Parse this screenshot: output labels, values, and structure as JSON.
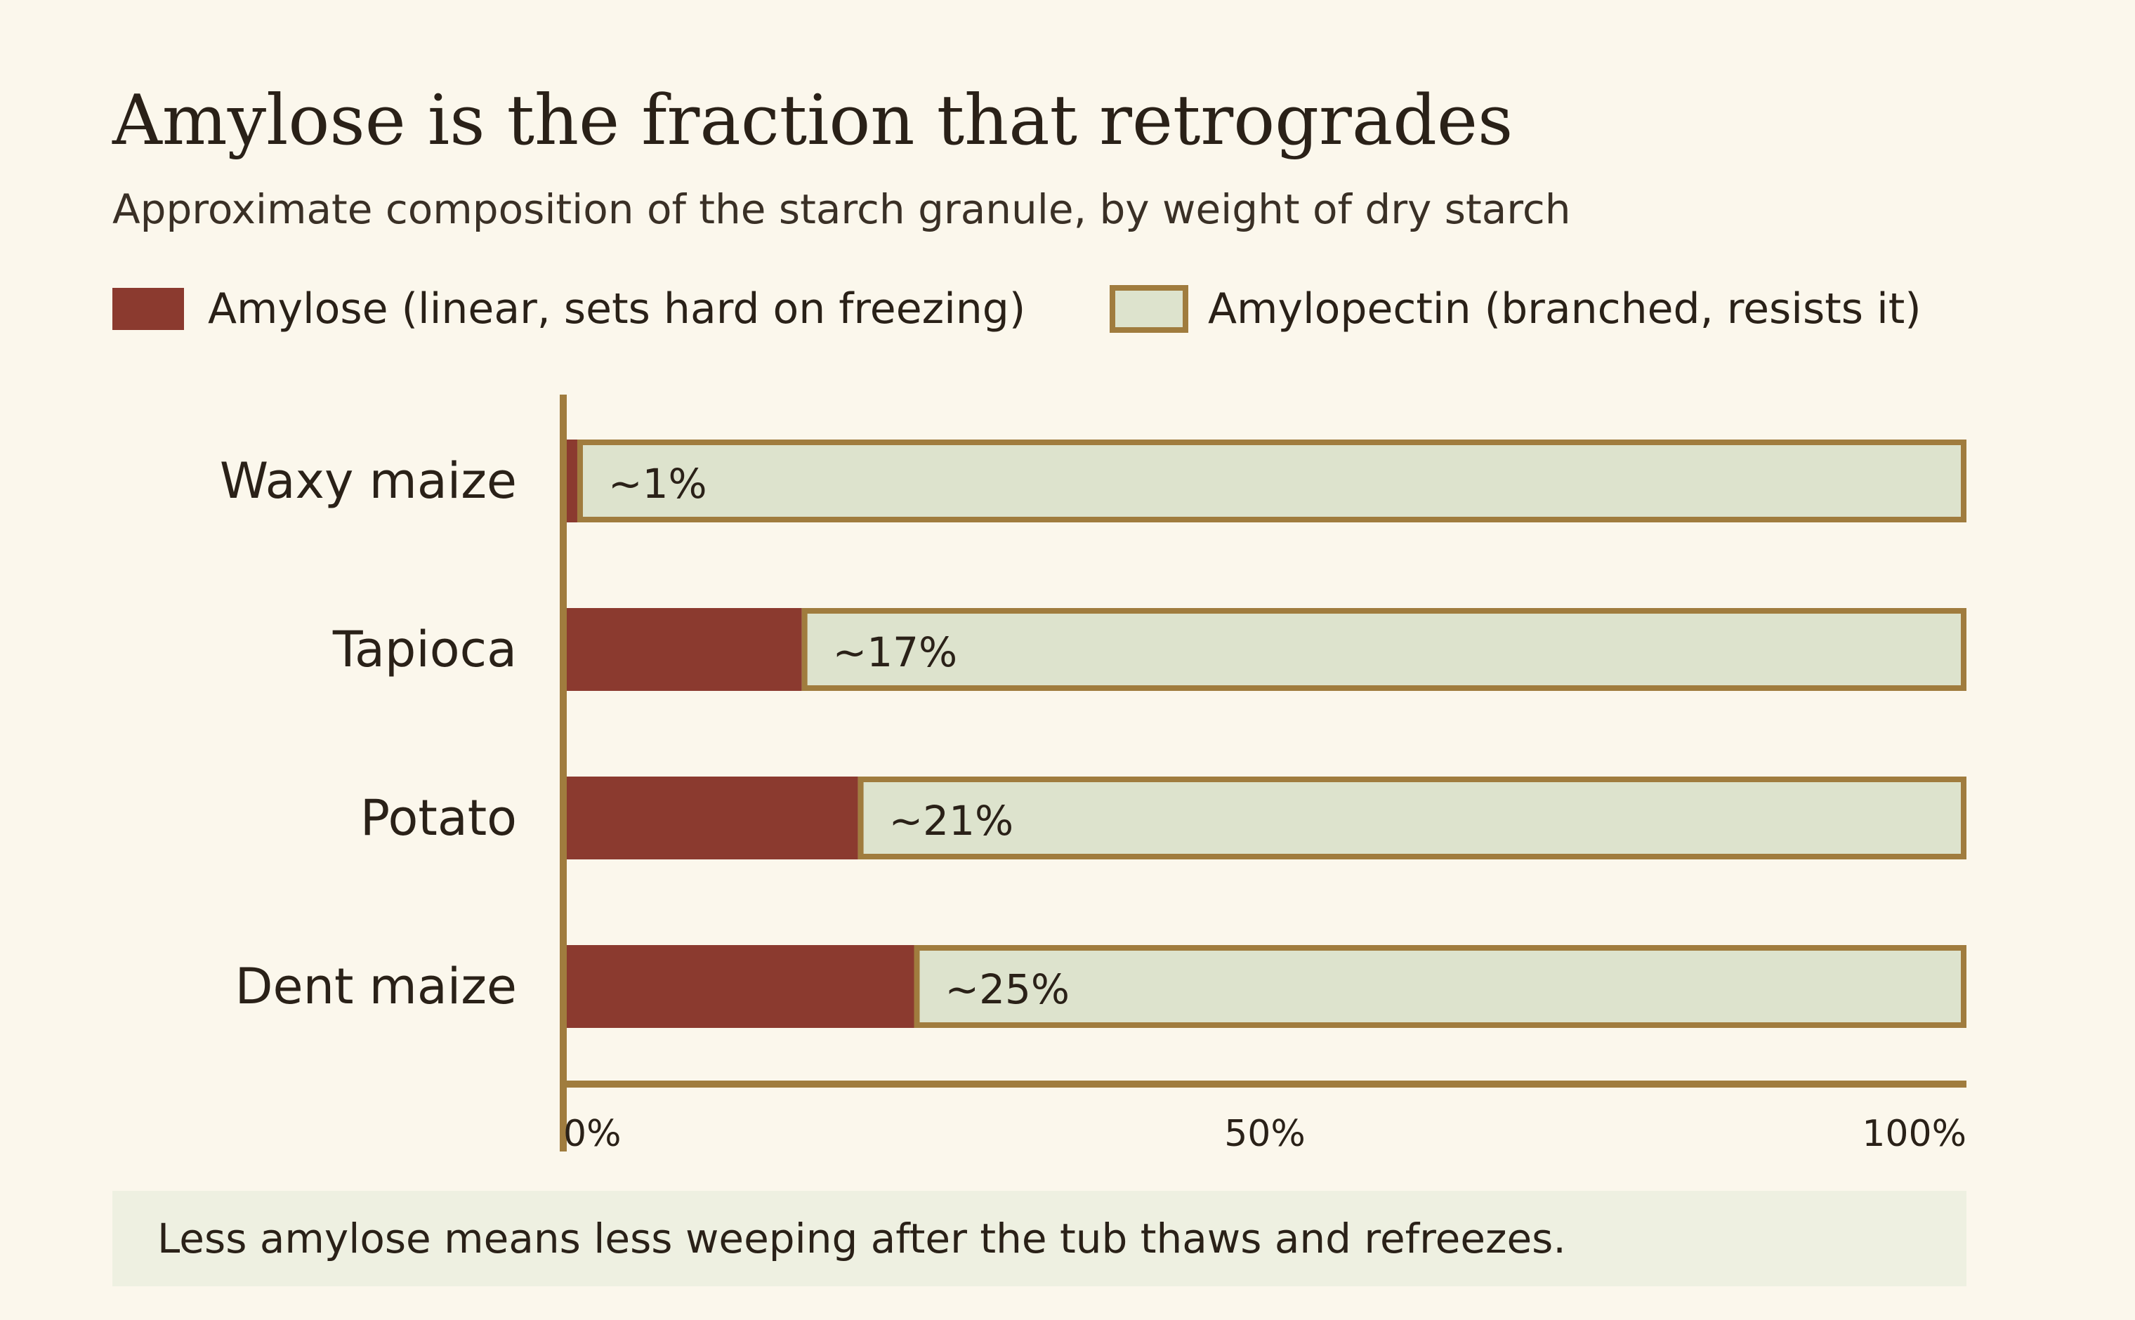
{
  "chart_data": {
    "type": "bar",
    "stacked": true,
    "orientation": "horizontal",
    "title": "Amylose is the fraction that retrogrades",
    "subtitle": "Approximate composition of the starch granule, by weight of dry starch",
    "categories": [
      "Waxy maize",
      "Tapioca",
      "Potato",
      "Dent maize"
    ],
    "series": [
      {
        "name": "Amylose (linear, sets hard on freezing)",
        "values": [
          1,
          17,
          21,
          25
        ],
        "color": "#8b3a2f"
      },
      {
        "name": "Amylopectin (branched, resists it)",
        "values": [
          99,
          83,
          79,
          75
        ],
        "color": "#dde3cd"
      }
    ],
    "data_labels": [
      "~1%",
      "~17%",
      "~21%",
      "~25%"
    ],
    "xlim": [
      0,
      100
    ],
    "x_ticks": [
      "0%",
      "50%",
      "100%"
    ],
    "xlabel": "",
    "ylabel": "",
    "grid": false,
    "legend_position": "top-left",
    "note": "Less amylose means less weeping after the tub thaws and refreezes."
  },
  "colors": {
    "background": "#fbf7ec",
    "amylose": "#8b3a2f",
    "amylopectin": "#dde3cd",
    "outline": "#a07c3e",
    "note_background": "#eef0e1"
  }
}
